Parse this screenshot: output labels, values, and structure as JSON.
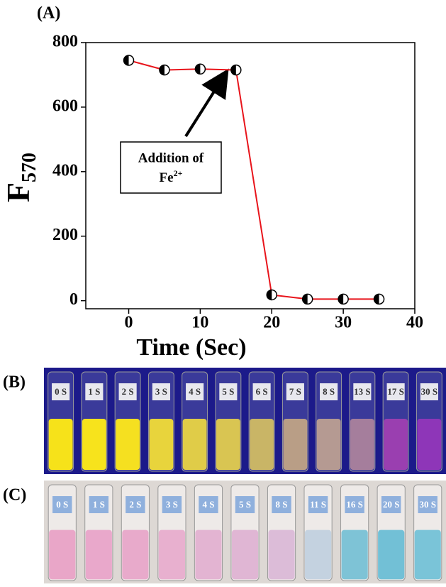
{
  "chart_data": {
    "type": "line",
    "panel_label": "(A)",
    "xlabel": "Time (Sec)",
    "ylabel": "F",
    "ylabel_subscript": "570",
    "x": [
      0,
      5,
      10,
      15,
      20,
      25,
      30,
      35
    ],
    "series": [
      {
        "color": "#e8141b",
        "values": [
          745,
          715,
          718,
          715,
          18,
          5,
          5,
          5
        ]
      }
    ],
    "xlim": [
      -6,
      40
    ],
    "xticks": [
      0,
      10,
      20,
      30,
      40
    ],
    "ylim": [
      -25,
      800
    ],
    "yticks": [
      0,
      200,
      400,
      600,
      800
    ],
    "annotation": {
      "text": "Addition of",
      "text2": "Fe",
      "superscript": "2+"
    }
  },
  "photos": [
    {
      "label": "(B)",
      "background": "#1c1a8a",
      "vials": [
        {
          "label": "0 S",
          "color": "#f6e21a"
        },
        {
          "label": "1 S",
          "color": "#f7e31c"
        },
        {
          "label": "2 S",
          "color": "#f5e020"
        },
        {
          "label": "3 S",
          "color": "#e8d43c"
        },
        {
          "label": "4 S",
          "color": "#e0cc48"
        },
        {
          "label": "5 S",
          "color": "#d9c552"
        },
        {
          "label": "6 S",
          "color": "#c9b566"
        },
        {
          "label": "7 S",
          "color": "#b99e86"
        },
        {
          "label": "8 S",
          "color": "#b59a92"
        },
        {
          "label": "13 S",
          "color": "#a57e9c"
        },
        {
          "label": "17 S",
          "color": "#9a3fb0"
        },
        {
          "label": "30 S",
          "color": "#8e36b8"
        }
      ]
    },
    {
      "label": "(C)",
      "background": "#ddd8d4",
      "vials": [
        {
          "label": "0 S",
          "color": "#e9a6c8"
        },
        {
          "label": "1 S",
          "color": "#e9a8cb"
        },
        {
          "label": "2 S",
          "color": "#e8aacb"
        },
        {
          "label": "3 S",
          "color": "#e8b0cf"
        },
        {
          "label": "4 S",
          "color": "#e3b4d2"
        },
        {
          "label": "5 S",
          "color": "#e0b6d4"
        },
        {
          "label": "8 S",
          "color": "#dcbcd8"
        },
        {
          "label": "11 S",
          "color": "#c4d2e0"
        },
        {
          "label": "16 S",
          "color": "#7ec3d6"
        },
        {
          "label": "20 S",
          "color": "#72c0d6"
        },
        {
          "label": "30 S",
          "color": "#7ac4d8"
        }
      ]
    }
  ]
}
